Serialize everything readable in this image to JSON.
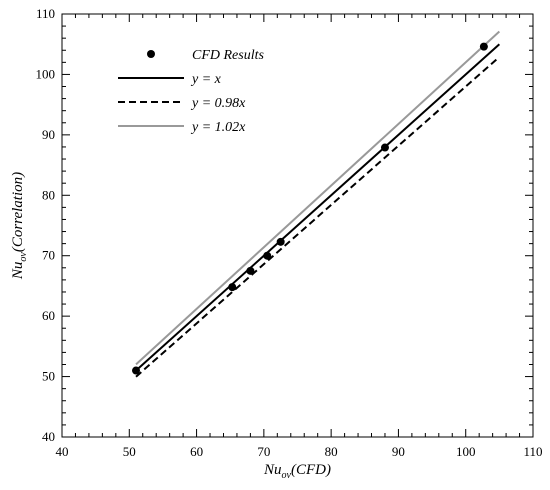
{
  "chart_data": {
    "type": "scatter",
    "xlabel": {
      "main": "Nu",
      "sub": "ov",
      "suffix": "(CFD)"
    },
    "ylabel": {
      "main": "Nu",
      "sub": "ov",
      "suffix": "(Correlation)"
    },
    "xlim": [
      40,
      110
    ],
    "ylim": [
      40,
      110
    ],
    "x_major_ticks": [
      40,
      50,
      60,
      70,
      80,
      90,
      100,
      110
    ],
    "y_major_ticks": [
      40,
      50,
      60,
      70,
      80,
      90,
      100,
      110
    ],
    "minor_tick_step": 2,
    "grid": false,
    "legend_position": "top-left",
    "series": [
      {
        "name": "CFD Results",
        "kind": "points",
        "color": "#000000",
        "x": [
          51.0,
          65.3,
          68.0,
          70.5,
          72.5,
          88.0,
          102.7
        ],
        "y": [
          51.0,
          64.8,
          67.5,
          70.0,
          72.3,
          87.9,
          104.6
        ]
      },
      {
        "name": "y = x",
        "kind": "line",
        "slope": 1.0,
        "style": "solid",
        "color": "#000000",
        "x_range": [
          51,
          105
        ]
      },
      {
        "name": "y = 0.98x",
        "kind": "line",
        "slope": 0.98,
        "style": "dashed",
        "color": "#000000",
        "x_range": [
          51,
          105
        ]
      },
      {
        "name": "y = 1.02x",
        "kind": "line",
        "slope": 1.02,
        "style": "solid",
        "color": "#999999",
        "x_range": [
          51,
          105
        ]
      }
    ]
  }
}
